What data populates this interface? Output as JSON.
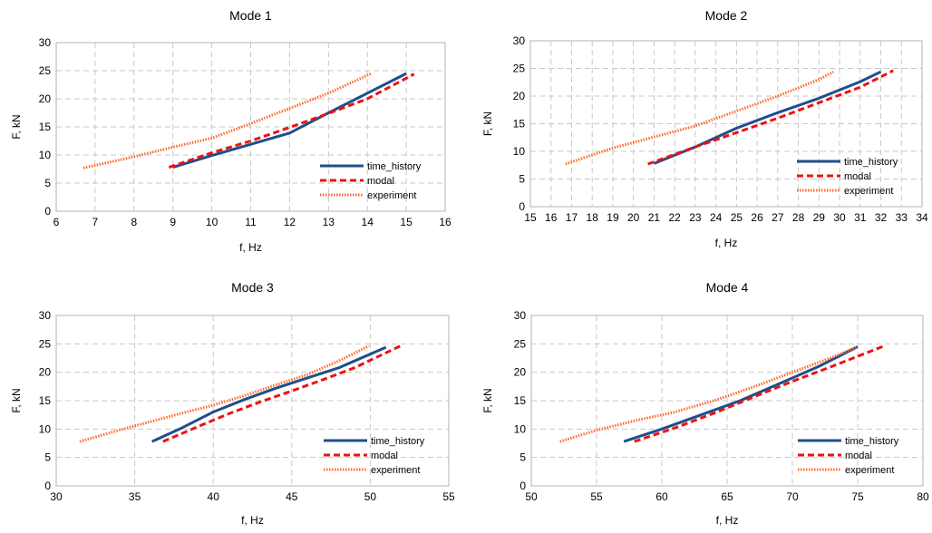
{
  "colors": {
    "time_history": "#1f4e8c",
    "modal": "#ee1111",
    "experiment": "#ff6a2a",
    "grid": "#c8c8c8"
  },
  "chart_data": [
    {
      "type": "line",
      "title": "Mode 1",
      "xlabel": "f, Hz",
      "ylabel": "F, kN",
      "xlim": [
        6,
        16
      ],
      "ylim": [
        0,
        30
      ],
      "xticks": [
        6,
        7,
        8,
        9,
        10,
        11,
        12,
        13,
        14,
        15,
        16
      ],
      "yticks": [
        0,
        5,
        10,
        15,
        20,
        25,
        30
      ],
      "grid": true,
      "legend_position": "bottom-right",
      "series": [
        {
          "name": "time_history",
          "style": "solid",
          "x": [
            9.0,
            10.0,
            11.0,
            12.0,
            13.0,
            14.0,
            15.0
          ],
          "y": [
            7.8,
            9.9,
            11.9,
            13.9,
            17.5,
            21.0,
            24.5
          ]
        },
        {
          "name": "modal",
          "style": "dashed",
          "x": [
            8.9,
            10.0,
            11.0,
            12.0,
            13.0,
            14.0,
            15.2
          ],
          "y": [
            7.8,
            10.4,
            12.5,
            14.9,
            17.4,
            20.0,
            24.4
          ]
        },
        {
          "name": "experiment",
          "style": "dotted",
          "x": [
            6.7,
            8.0,
            9.0,
            10.0,
            11.0,
            12.0,
            13.0,
            14.1
          ],
          "y": [
            7.7,
            9.7,
            11.4,
            13.0,
            15.6,
            18.3,
            21.0,
            24.5
          ]
        }
      ]
    },
    {
      "type": "line",
      "title": "Mode 2",
      "xlabel": "f, Hz",
      "ylabel": "F, kN",
      "xlim": [
        15,
        34
      ],
      "ylim": [
        0,
        30
      ],
      "xticks": [
        15,
        16,
        17,
        18,
        19,
        20,
        21,
        22,
        23,
        24,
        25,
        26,
        27,
        28,
        29,
        30,
        31,
        32,
        33,
        34
      ],
      "yticks": [
        0,
        5,
        10,
        15,
        20,
        25,
        30
      ],
      "grid": true,
      "legend_position": "bottom-right",
      "series": [
        {
          "name": "time_history",
          "style": "solid",
          "x": [
            21.0,
            23.0,
            25.0,
            27.0,
            29.0,
            31.0,
            32.0
          ],
          "y": [
            7.8,
            10.8,
            14.2,
            17.0,
            19.6,
            22.6,
            24.4
          ]
        },
        {
          "name": "modal",
          "style": "dashed",
          "x": [
            20.7,
            23.0,
            25.0,
            27.0,
            29.0,
            31.0,
            32.6
          ],
          "y": [
            7.7,
            10.8,
            13.4,
            16.0,
            18.8,
            21.6,
            24.6
          ]
        },
        {
          "name": "experiment",
          "style": "dotted",
          "x": [
            16.7,
            19.0,
            21.0,
            23.0,
            25.0,
            27.0,
            29.0,
            29.7
          ],
          "y": [
            7.7,
            10.6,
            12.6,
            14.6,
            17.3,
            20.0,
            23.0,
            24.4
          ]
        }
      ]
    },
    {
      "type": "line",
      "title": "Mode 3",
      "xlabel": "f, Hz",
      "ylabel": "F, kN",
      "xlim": [
        30,
        55
      ],
      "ylim": [
        0,
        30
      ],
      "xticks": [
        30,
        35,
        40,
        45,
        50,
        55
      ],
      "yticks": [
        0,
        5,
        10,
        15,
        20,
        25,
        30
      ],
      "grid": true,
      "legend_position": "bottom-right",
      "series": [
        {
          "name": "time_history",
          "style": "solid",
          "x": [
            36.1,
            38.0,
            40.0,
            42.0,
            44.0,
            46.0,
            48.0,
            51.0
          ],
          "y": [
            7.8,
            10.2,
            13.0,
            15.2,
            17.2,
            19.0,
            20.8,
            24.4
          ]
        },
        {
          "name": "modal",
          "style": "dashed",
          "x": [
            36.8,
            39.0,
            41.0,
            43.0,
            45.0,
            47.0,
            49.0,
            51.9
          ],
          "y": [
            7.8,
            10.4,
            12.7,
            14.8,
            16.7,
            18.7,
            20.8,
            24.6
          ]
        },
        {
          "name": "experiment",
          "style": "dotted",
          "x": [
            31.5,
            34.0,
            36.0,
            38.0,
            40.0,
            42.0,
            44.0,
            46.0,
            48.0,
            49.9
          ],
          "y": [
            7.8,
            9.8,
            11.3,
            12.8,
            14.2,
            15.9,
            17.8,
            19.6,
            22.0,
            24.6
          ]
        }
      ]
    },
    {
      "type": "line",
      "title": "Mode 4",
      "xlabel": "f, Hz",
      "ylabel": "F, kN",
      "xlim": [
        50,
        80
      ],
      "ylim": [
        0,
        30
      ],
      "xticks": [
        50,
        55,
        60,
        65,
        70,
        75,
        80
      ],
      "yticks": [
        0,
        5,
        10,
        15,
        20,
        25,
        30
      ],
      "grid": true,
      "legend_position": "bottom-right",
      "series": [
        {
          "name": "time_history",
          "style": "solid",
          "x": [
            57.1,
            60.0,
            63.0,
            66.0,
            69.0,
            72.0,
            75.0
          ],
          "y": [
            7.8,
            10.0,
            12.5,
            15.0,
            18.0,
            21.0,
            24.5
          ]
        },
        {
          "name": "modal",
          "style": "dashed",
          "x": [
            57.9,
            61.0,
            64.0,
            67.0,
            70.0,
            73.0,
            77.0
          ],
          "y": [
            7.8,
            10.2,
            12.8,
            15.6,
            18.4,
            21.0,
            24.6
          ]
        },
        {
          "name": "experiment",
          "style": "dotted",
          "x": [
            52.2,
            55.0,
            58.0,
            61.0,
            64.0,
            67.0,
            70.0,
            73.0,
            75.0
          ],
          "y": [
            7.8,
            9.8,
            11.5,
            13.0,
            15.0,
            17.4,
            20.0,
            22.6,
            24.5
          ]
        }
      ]
    }
  ]
}
